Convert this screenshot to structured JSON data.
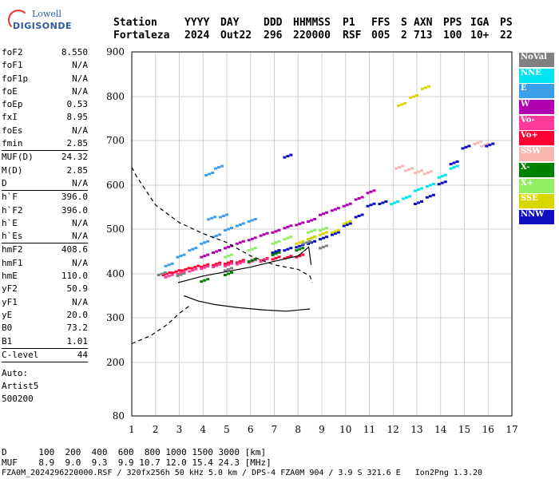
{
  "logo": {
    "line1": "Lowell",
    "line2": "DIGISONDE"
  },
  "header": {
    "labels": [
      "Station",
      "YYYY",
      "DAY",
      "DDD",
      "HHMMSS",
      "P1",
      "FFS",
      "S",
      "AXN",
      "PPS",
      "IGA",
      "PS"
    ],
    "values": [
      "Fortaleza",
      "2024",
      "Out22",
      "296",
      "220000",
      "RSF",
      "005",
      "2",
      "713",
      "100",
      "10+",
      "22"
    ]
  },
  "params": {
    "group1": [
      {
        "name": "foF2",
        "value": "8.550"
      },
      {
        "name": "foF1",
        "value": "N/A"
      },
      {
        "name": "foF1p",
        "value": "N/A"
      },
      {
        "name": "foE",
        "value": "N/A"
      },
      {
        "name": "foEp",
        "value": "0.53"
      },
      {
        "name": "fxI",
        "value": "8.95"
      },
      {
        "name": "foEs",
        "value": "N/A"
      },
      {
        "name": "fmin",
        "value": "2.85"
      }
    ],
    "group2": [
      {
        "name": "MUF(D)",
        "value": "24.32"
      },
      {
        "name": "M(D)",
        "value": "2.85"
      },
      {
        "name": "D",
        "value": "N/A"
      }
    ],
    "group3": [
      {
        "name": "h`F",
        "value": "396.0"
      },
      {
        "name": "h`F2",
        "value": "396.0"
      },
      {
        "name": "h`E",
        "value": "N/A"
      },
      {
        "name": "h`Es",
        "value": "N/A"
      }
    ],
    "group4": [
      {
        "name": "hmF2",
        "value": "408.6"
      },
      {
        "name": "hmF1",
        "value": "N/A"
      },
      {
        "name": "hmE",
        "value": "110.0"
      },
      {
        "name": "yF2",
        "value": "50.9"
      },
      {
        "name": "yF1",
        "value": "N/A"
      },
      {
        "name": "yE",
        "value": "20.0"
      },
      {
        "name": "B0",
        "value": "73.2"
      },
      {
        "name": "B1",
        "value": "1.01"
      }
    ],
    "clevel": {
      "name": "C-level",
      "value": "44"
    },
    "auto": [
      "Auto:",
      "Artist5",
      "500200"
    ]
  },
  "legend": [
    {
      "label": "NoVal",
      "color": "#808080"
    },
    {
      "label": "NNE",
      "color": "#00e5f0"
    },
    {
      "label": "E",
      "color": "#3a9ee8"
    },
    {
      "label": "W",
      "color": "#b000b0"
    },
    {
      "label": "Vo-",
      "color": "#ff3a9a"
    },
    {
      "label": "Vo+",
      "color": "#ff0033"
    },
    {
      "label": "SSW",
      "color": "#f7b6b0"
    },
    {
      "label": "X-",
      "color": "#008000"
    },
    {
      "label": "X+",
      "color": "#90ee60"
    },
    {
      "label": "SSE",
      "color": "#d8d800"
    },
    {
      "label": "NNW",
      "color": "#1010c0"
    }
  ],
  "footer": {
    "d_label": "D",
    "d_values": "100  200  400  600  800 1000 1500 3000 [km]",
    "muf_label": "MUF",
    "muf_values": "8.9  9.0  9.3  9.9 10.7 12.0 15.4 24.3 [MHz]",
    "info": "FZA0M_2024296220000.RSF / 320fx256h 50 kHz 5.0 km / DPS-4 FZA0M 904 / 3.9 S 321.6 E   Ion2Png 1.3.20"
  },
  "chart_data": {
    "type": "scatter",
    "xlim": [
      1,
      17
    ],
    "ylim": [
      80,
      900
    ],
    "x_ticks": [
      "1",
      "2",
      "3",
      "4",
      "5",
      "6",
      "7",
      "8",
      "9",
      "10",
      "11",
      "12",
      "13",
      "14",
      "15",
      "16",
      "17"
    ],
    "y_ticks": [
      "80",
      "200",
      "300",
      "400",
      "500",
      "600",
      "700",
      "800",
      "900"
    ],
    "grid": true,
    "profile_solid": [
      [
        2.95,
        380
      ],
      [
        3.3,
        385
      ],
      [
        4,
        395
      ],
      [
        5,
        405
      ],
      [
        6,
        415
      ],
      [
        7,
        428
      ],
      [
        8,
        440
      ],
      [
        8.45,
        460
      ],
      [
        8.55,
        420
      ]
    ],
    "profile_lower": [
      [
        3.2,
        350
      ],
      [
        3.8,
        338
      ],
      [
        4.5,
        330
      ],
      [
        5.5,
        323
      ],
      [
        6.5,
        318
      ],
      [
        7.5,
        315
      ],
      [
        8.5,
        320
      ]
    ],
    "profile_dashed": [
      [
        1,
        640
      ],
      [
        1.2,
        620
      ],
      [
        2,
        555
      ],
      [
        3,
        515
      ],
      [
        4,
        490
      ],
      [
        5,
        470
      ],
      [
        6,
        440
      ],
      [
        7,
        420
      ],
      [
        8,
        410
      ],
      [
        8.5,
        395
      ],
      [
        8.6,
        380
      ]
    ],
    "profile_dashed_low": [
      [
        1,
        242
      ],
      [
        1.8,
        260
      ],
      [
        2.5,
        285
      ],
      [
        3,
        310
      ],
      [
        3.5,
        330
      ]
    ],
    "traces": [
      {
        "series": "Vo+",
        "points": [
          [
            2.4,
            400
          ],
          [
            2.8,
            405
          ],
          [
            3.2,
            410
          ],
          [
            3.6,
            415
          ],
          [
            4,
            418
          ],
          [
            4.5,
            422
          ],
          [
            5,
            425
          ],
          [
            5.5,
            428
          ],
          [
            6,
            430
          ],
          [
            6.5,
            432
          ],
          [
            7,
            435
          ],
          [
            7.5,
            437
          ],
          [
            8,
            440
          ]
        ]
      },
      {
        "series": "Vo-",
        "points": [
          [
            2.5,
            395
          ],
          [
            3,
            402
          ],
          [
            3.5,
            408
          ],
          [
            4,
            414
          ],
          [
            4.5,
            418
          ],
          [
            5,
            420
          ],
          [
            5.5,
            424
          ],
          [
            6,
            428
          ],
          [
            6.5,
            430
          ]
        ]
      },
      {
        "series": "W",
        "points": [
          [
            4,
            440
          ],
          [
            4.5,
            450
          ],
          [
            5,
            460
          ],
          [
            5.5,
            470
          ],
          [
            6,
            478
          ],
          [
            6.5,
            488
          ],
          [
            7,
            495
          ],
          [
            7.5,
            505
          ],
          [
            8,
            512
          ],
          [
            8.5,
            520
          ],
          [
            9,
            535
          ],
          [
            9.5,
            545
          ],
          [
            10,
            555
          ],
          [
            10.5,
            570
          ],
          [
            11,
            585
          ]
        ]
      },
      {
        "series": "E",
        "points": [
          [
            2.5,
            420
          ],
          [
            3,
            440
          ],
          [
            3.5,
            455
          ],
          [
            4,
            470
          ],
          [
            4.5,
            485
          ],
          [
            5,
            500
          ],
          [
            5.5,
            510
          ],
          [
            6,
            520
          ],
          [
            4.3,
            525
          ],
          [
            4.8,
            530
          ],
          [
            4.2,
            625
          ],
          [
            4.6,
            640
          ]
        ]
      },
      {
        "series": "NNE",
        "points": [
          [
            12,
            560
          ],
          [
            12.5,
            572
          ],
          [
            13,
            590
          ],
          [
            13.5,
            600
          ],
          [
            14,
            620
          ],
          [
            14.5,
            640
          ]
        ]
      },
      {
        "series": "SSW",
        "points": [
          [
            12.2,
            640
          ],
          [
            12.6,
            635
          ],
          [
            13,
            630
          ],
          [
            13.4,
            628
          ],
          [
            15.5,
            695
          ],
          [
            15.8,
            690
          ]
        ]
      },
      {
        "series": "NNW",
        "points": [
          [
            7,
            450
          ],
          [
            7.5,
            455
          ],
          [
            8,
            462
          ],
          [
            8.5,
            470
          ],
          [
            9,
            480
          ],
          [
            9.5,
            490
          ],
          [
            10,
            510
          ],
          [
            10.5,
            530
          ],
          [
            11,
            555
          ],
          [
            11.5,
            560
          ],
          [
            13,
            560
          ],
          [
            13.5,
            575
          ],
          [
            14,
            605
          ],
          [
            14.5,
            650
          ],
          [
            15,
            685
          ],
          [
            16,
            690
          ],
          [
            7.5,
            665
          ]
        ]
      },
      {
        "series": "X-",
        "points": [
          [
            4,
            385
          ],
          [
            5,
            400
          ],
          [
            6,
            430
          ],
          [
            7,
            445
          ],
          [
            8,
            455
          ],
          [
            8.5,
            480
          ]
        ]
      },
      {
        "series": "X+",
        "points": [
          [
            5,
            440
          ],
          [
            6,
            455
          ],
          [
            7,
            470
          ],
          [
            7.5,
            480
          ],
          [
            8.5,
            495
          ],
          [
            9,
            500
          ]
        ]
      },
      {
        "series": "SSE",
        "points": [
          [
            8,
            470
          ],
          [
            8.5,
            480
          ],
          [
            9,
            490
          ],
          [
            9.5,
            495
          ],
          [
            10,
            515
          ],
          [
            12.3,
            782
          ],
          [
            12.8,
            800
          ],
          [
            13.3,
            820
          ]
        ]
      },
      {
        "series": "NoVal",
        "points": [
          [
            2.2,
            400
          ],
          [
            3,
            398
          ],
          [
            5,
            410
          ],
          [
            9,
            460
          ],
          [
            8.3,
            470
          ]
        ]
      }
    ]
  }
}
